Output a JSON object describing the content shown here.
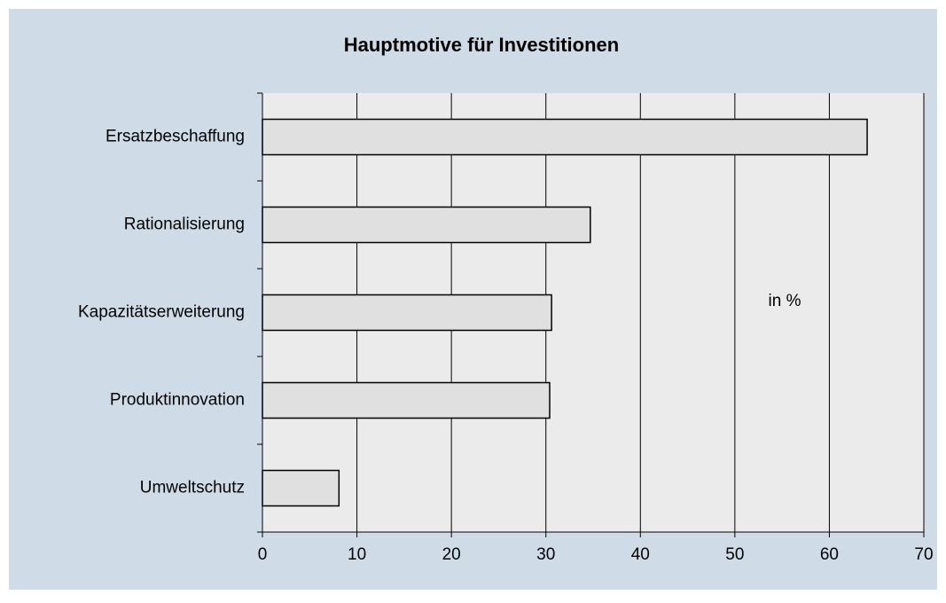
{
  "chart_data": {
    "type": "barh",
    "title": "Hauptmotive für Investitionen",
    "categories": [
      "Ersatzbeschaffung",
      "Rationalisierung",
      "Kapazitätserweiterung",
      "Produktinnovation",
      "Umweltschutz"
    ],
    "values": [
      64,
      34.7,
      30.6,
      30.4,
      8.1
    ],
    "color": "#e0e0e0",
    "xlim": [
      0,
      70
    ],
    "xticks": [
      0,
      10,
      20,
      30,
      40,
      50,
      60,
      70
    ],
    "grid": true,
    "annotation": "in %"
  }
}
